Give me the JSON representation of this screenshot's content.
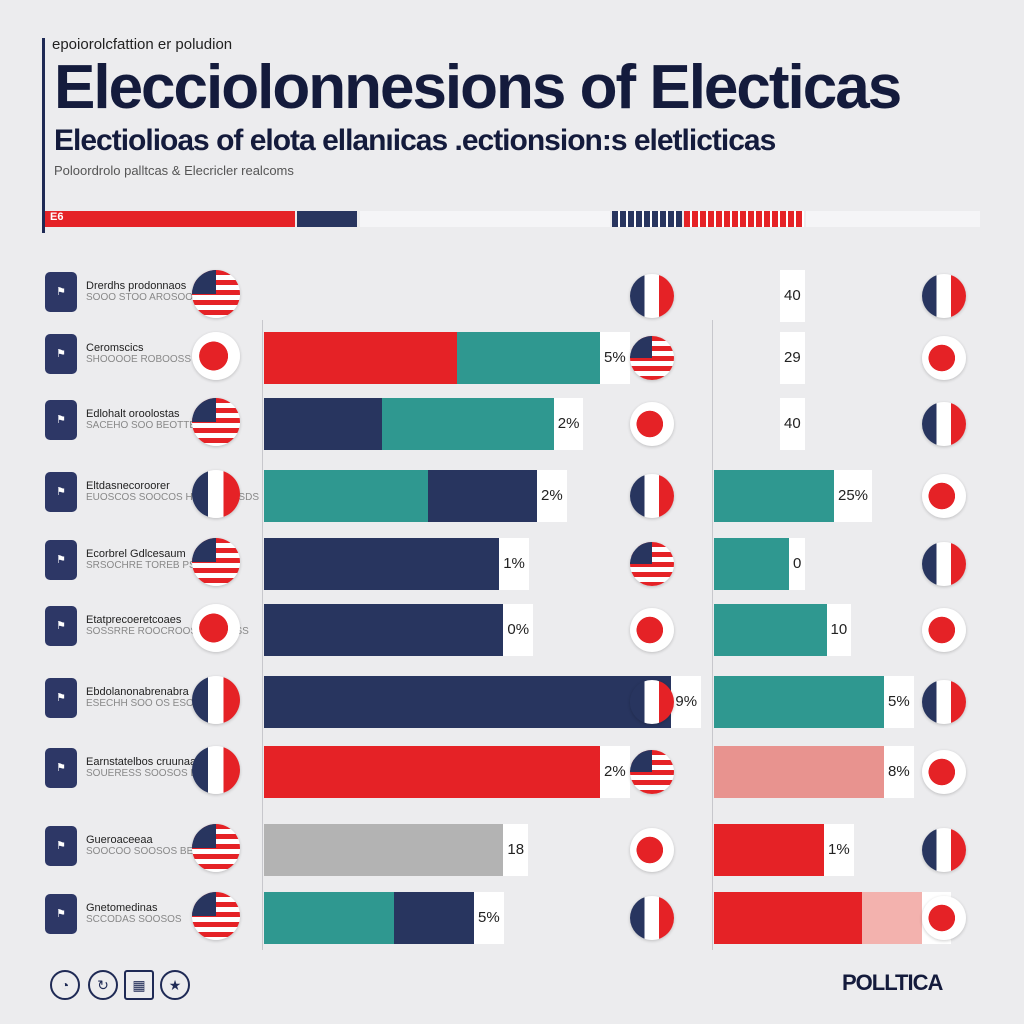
{
  "header": {
    "kicker": "epoiorolcfattion er poludion",
    "title": "Elecciolonnesions of Electicas",
    "subtitle": "Electiolioas of elota ellanıicas .ectionsion:s eletlicticas",
    "tagline": "Poloordrolo palltcas & Elecricler realcoms",
    "strip_label": "E6"
  },
  "colors": {
    "red": "#e52226",
    "teal": "#2f9890",
    "navy": "#28355f",
    "grey": "#b3b3b3",
    "pink": "#e8938f",
    "rose": "#f3b2ae"
  },
  "rows": [
    {
      "name": "Drerdhs prodonnaos",
      "sub": "SOOO STOO AROSOO",
      "icon": "flag-usa-icon"
    },
    {
      "name": "Ceromscics",
      "sub": "SHOOOOE ROBOOSS SOOD",
      "icon": "flag-red-icon"
    },
    {
      "name": "Edlohalt oroolostas",
      "sub": "SACEHO SOO BEOTTESO SS",
      "icon": "flag-usa-icon"
    },
    {
      "name": "Eltdasnecoroorer",
      "sub": "EUOSCOS SOOCOS HOCEO TOSDS",
      "icon": "flag-france-icon"
    },
    {
      "name": "Ecorbrel Gdlcesaum",
      "sub": "SRSOCHRE TOREB PSOOSO",
      "icon": "flag-usa-icon"
    },
    {
      "name": "Etatprecoeretcoaes",
      "sub": "SOSSRRE ROOCROOSE SSOOSS",
      "icon": "flag-red-icon"
    },
    {
      "name": "Ebdolanonabrenabra",
      "sub": "ESECHH SOO OS ESOOSO",
      "icon": "flag-france-icon"
    },
    {
      "name": "Earnstatelbos cruunaats",
      "sub": "SOUERESS SOOSOS BRROSE",
      "icon": "flag-france-icon"
    },
    {
      "name": "Gueroaceeaa",
      "sub": "SOOCOO SOOSOS BEOOOO",
      "icon": "flag-usa-icon"
    },
    {
      "name": "Gnetomedinas",
      "sub": "SCCODAS SOOSOS",
      "icon": "flag-usa-icon"
    }
  ],
  "chart_data": {
    "type": "bar",
    "title": "Elecciolonnesions of Electicas",
    "subtitle": "Electiolioas of elota ellanıicas .ectionsion:s eletlicticas",
    "xlabel": "",
    "ylabel": "",
    "categories": [
      "Drerdhs prodonnaos",
      "Ceromscics",
      "Edlohalt oroolostas",
      "Eltdasnecoroorer",
      "Ecorbrel Gdlcesaum",
      "Etatprecoeretcoaes",
      "Ebdolanonabrenabra",
      "Earnstatelbos cruunaats",
      "Gueroaceeaa",
      "Gnetomedinas"
    ],
    "left_panel": {
      "xlim": [
        0,
        100
      ],
      "rows": [
        null,
        {
          "segments": [
            {
              "color": "red",
              "value": 46
            },
            {
              "color": "teal",
              "value": 34
            }
          ],
          "label": "5%"
        },
        {
          "segments": [
            {
              "color": "navy",
              "value": 28
            },
            {
              "color": "teal",
              "value": 41
            }
          ],
          "label": "2%"
        },
        {
          "segments": [
            {
              "color": "teal",
              "value": 39
            },
            {
              "color": "navy",
              "value": 26
            }
          ],
          "label": "2%"
        },
        {
          "segments": [
            {
              "color": "navy",
              "value": 56
            }
          ],
          "label": "1%"
        },
        {
          "segments": [
            {
              "color": "navy",
              "value": 57
            }
          ],
          "label": "0%"
        },
        {
          "segments": [
            {
              "color": "navy",
              "value": 97
            }
          ],
          "label": "9%"
        },
        {
          "segments": [
            {
              "color": "red",
              "value": 80
            }
          ],
          "label": "2%"
        },
        {
          "segments": [
            {
              "color": "grey",
              "value": 57
            }
          ],
          "label": "18"
        },
        {
          "segments": [
            {
              "color": "teal",
              "value": 31
            },
            {
              "color": "navy",
              "value": 19
            }
          ],
          "label": "5%"
        }
      ]
    },
    "right_panel": {
      "xlim": [
        0,
        100
      ],
      "rows": [
        {
          "segments": [],
          "label": "40"
        },
        {
          "segments": [],
          "label": "29"
        },
        {
          "segments": [],
          "label": "40"
        },
        {
          "segments": [
            {
              "color": "teal",
              "value": 48
            }
          ],
          "label": "25%"
        },
        {
          "segments": [
            {
              "color": "teal",
              "value": 30
            }
          ],
          "label": "0"
        },
        {
          "segments": [
            {
              "color": "teal",
              "value": 45
            }
          ],
          "label": "10"
        },
        {
          "segments": [
            {
              "color": "teal",
              "value": 68
            }
          ],
          "label": "5%"
        },
        {
          "segments": [
            {
              "color": "pink",
              "value": 68
            }
          ],
          "label": "8%"
        },
        {
          "segments": [
            {
              "color": "red",
              "value": 44
            }
          ],
          "label": "1%"
        },
        {
          "segments": [
            {
              "color": "red",
              "value": 59
            },
            {
              "color": "rose",
              "value": 24
            }
          ],
          "label": "5%"
        }
      ]
    },
    "grid": false,
    "legend": "none"
  },
  "footer": {
    "icons": [
      "globe-icon",
      "refresh-icon",
      "building-icon",
      "ballot-icon"
    ],
    "brand": "POLLTICA"
  }
}
